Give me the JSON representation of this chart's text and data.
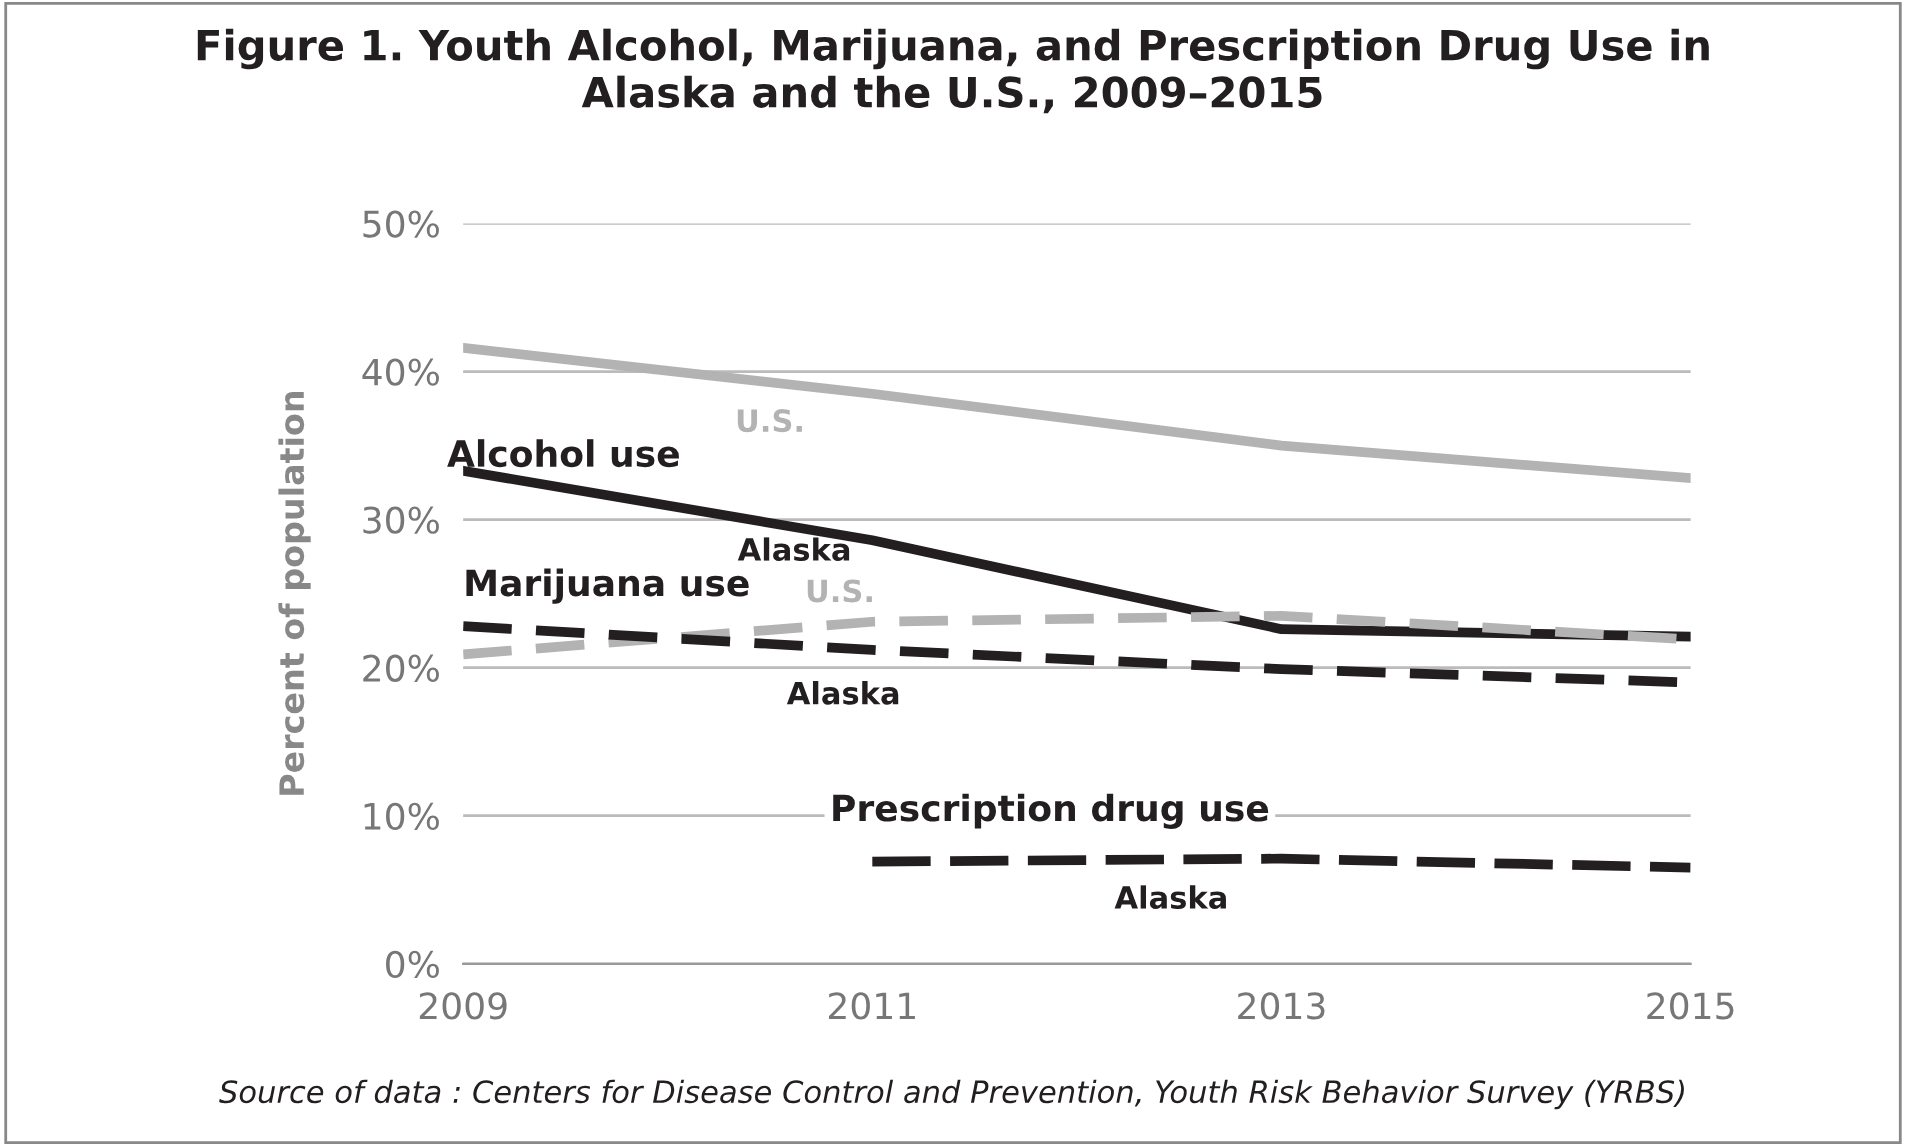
{
  "chart_data": {
    "type": "line",
    "title": "Figure 1. Youth Alcohol, Marijuana, and Prescription Drug Use in\nAlaska and the U.S., 2009–2015",
    "ylabel": "Percent of population",
    "x": [
      2009,
      2011,
      2013,
      2015
    ],
    "series": [
      {
        "name": "U.S.",
        "color": "#b3b3b3",
        "line_style": "solid",
        "values": [
          41.6,
          38.5,
          35.0,
          32.8
        ]
      },
      {
        "name": "Alaska",
        "color": "#231f20",
        "line_style": "solid",
        "values": [
          33.3,
          28.6,
          22.6,
          22.1
        ]
      },
      {
        "name": "U.S.",
        "color": "#b3b3b3",
        "line_style": "dashed",
        "values": [
          20.9,
          23.1,
          23.5,
          21.9
        ]
      },
      {
        "name": "Alaska",
        "color": "#231f20",
        "line_style": "dashed",
        "values": [
          22.8,
          21.2,
          19.9,
          19.0
        ]
      },
      {
        "name": "Alaska",
        "color": "#231f20",
        "line_style": "dashed",
        "values": [
          null,
          6.9,
          7.1,
          6.5
        ]
      }
    ],
    "xlim": [
      2009,
      2015
    ],
    "xticks": [
      2009,
      2011,
      2013,
      2015
    ],
    "ylim": [
      0,
      50
    ],
    "yticks": [
      {
        "value": 0,
        "label": "0%"
      },
      {
        "value": 10,
        "label": "10%"
      },
      {
        "value": 20,
        "label": "20%"
      },
      {
        "value": 30,
        "label": "30%"
      },
      {
        "value": 40,
        "label": "40%"
      },
      {
        "value": 50,
        "label": "50%"
      }
    ],
    "grid": "y",
    "legend": false,
    "annotations": [
      "Alcohol use",
      "Marijuana use",
      "Prescription drug use",
      "Source of data : Centers for Disease Control and Prevention, Youth Risk Behavior Survey (YRBS)"
    ]
  }
}
